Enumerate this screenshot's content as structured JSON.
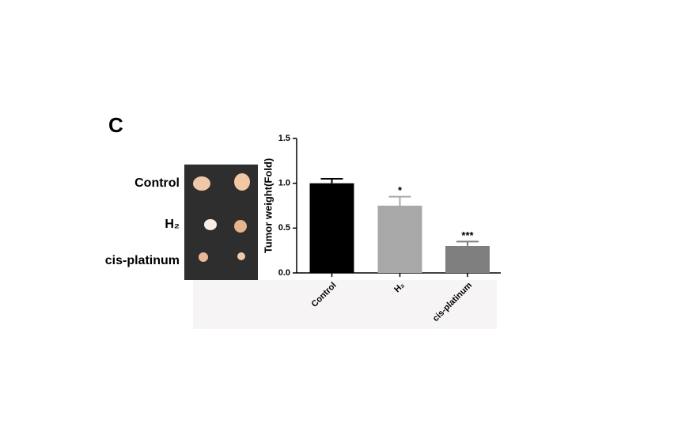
{
  "panel_label": "C",
  "photo": {
    "labels": [
      "Control",
      "H₂",
      "cis-platinum"
    ]
  },
  "chart_data": {
    "type": "bar",
    "y_label": "Tumor weight(Fold)",
    "categories": [
      "Control",
      "H₂",
      "cis-platinum"
    ],
    "values": [
      1.0,
      0.75,
      0.3
    ],
    "errors": [
      0.05,
      0.1,
      0.05
    ],
    "annotations": [
      null,
      "*",
      "***"
    ],
    "colors": [
      "#000000",
      "#a8a8a8",
      "#7f7f7f"
    ],
    "ylim": [
      0,
      1.5
    ],
    "yticks": [
      {
        "value": 0,
        "label": "0.0"
      },
      {
        "value": 0.5,
        "label": "0.5"
      },
      {
        "value": 1,
        "label": "1.0"
      },
      {
        "value": 1.5,
        "label": "1.5"
      }
    ]
  }
}
